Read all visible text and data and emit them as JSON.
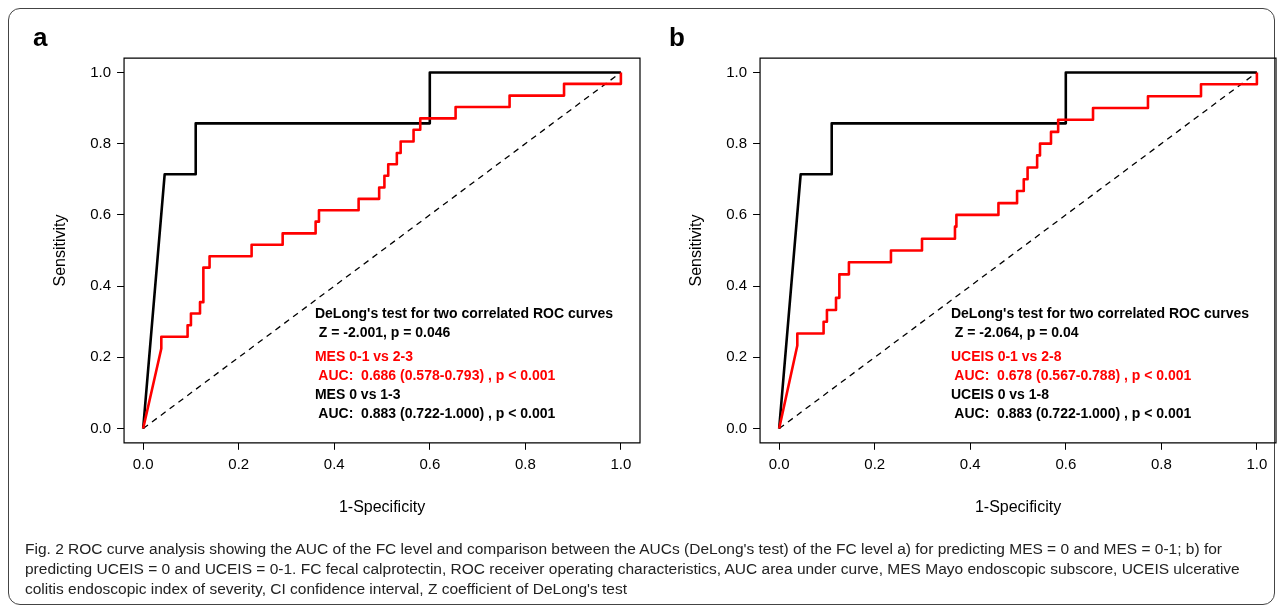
{
  "chart_data": [
    {
      "type": "line",
      "title": "a",
      "xlabel": "1-Specificity",
      "ylabel": "Sensitivity",
      "xlim": [
        -0.04,
        1.04
      ],
      "ylim": [
        -0.04,
        1.04
      ],
      "xticks": [
        {
          "value": 0,
          "label": "0.0"
        },
        {
          "value": 0.2,
          "label": "0.2"
        },
        {
          "value": 0.4,
          "label": "0.4"
        },
        {
          "value": 0.6,
          "label": "0.6"
        },
        {
          "value": 0.8,
          "label": "0.8"
        },
        {
          "value": 1,
          "label": "1.0"
        }
      ],
      "yticks": [
        {
          "value": 0,
          "label": "0.0"
        },
        {
          "value": 0.2,
          "label": "0.2"
        },
        {
          "value": 0.4,
          "label": "0.4"
        },
        {
          "value": 0.6,
          "label": "0.6"
        },
        {
          "value": 0.8,
          "label": "0.8"
        },
        {
          "value": 1,
          "label": "1.0"
        }
      ],
      "grid": false,
      "legend": false,
      "marker": "none",
      "series": [
        {
          "name": "MES 0-1 vs 2-3",
          "color": "#ff0000",
          "type": "line",
          "line_style": "solid",
          "x": [
            0,
            0.038,
            0.038,
            0.093,
            0.093,
            0.1,
            0.1,
            0.119,
            0.119,
            0.126,
            0.126,
            0.139,
            0.139,
            0.227,
            0.227,
            0.292,
            0.292,
            0.361,
            0.361,
            0.368,
            0.368,
            0.451,
            0.451,
            0.494,
            0.494,
            0.505,
            0.505,
            0.513,
            0.513,
            0.531,
            0.531,
            0.539,
            0.539,
            0.566,
            0.566,
            0.58,
            0.58,
            0.654,
            0.654,
            0.767,
            0.767,
            0.881,
            0.881,
            1,
            1
          ],
          "values": [
            0,
            0.225,
            0.258,
            0.258,
            0.29,
            0.29,
            0.323,
            0.323,
            0.355,
            0.355,
            0.452,
            0.452,
            0.484,
            0.484,
            0.516,
            0.516,
            0.548,
            0.548,
            0.581,
            0.581,
            0.613,
            0.613,
            0.645,
            0.645,
            0.677,
            0.677,
            0.71,
            0.71,
            0.742,
            0.742,
            0.774,
            0.774,
            0.806,
            0.806,
            0.839,
            0.839,
            0.871,
            0.871,
            0.903,
            0.903,
            0.935,
            0.935,
            0.968,
            0.968,
            1
          ]
        },
        {
          "name": "MES 0 vs 1-3",
          "color": "#000000",
          "type": "line",
          "line_style": "solid",
          "x": [
            0,
            0.045,
            0.11,
            0.11,
            0.6,
            0.6,
            1
          ],
          "values": [
            0,
            0.714,
            0.714,
            0.857,
            0.857,
            1,
            1
          ]
        },
        {
          "color": "#000000",
          "type": "line",
          "line_style": "dashed",
          "x": [
            0,
            1
          ],
          "values": [
            0,
            1
          ]
        }
      ],
      "annotations": [
        "DeLong's test for two correlated ROC curves",
        " Z = -2.001, p = 0.046",
        " AUC:  0.686 (0.578-0.793) , p < 0.001",
        " AUC:  0.883 (0.722-1.000) , p < 0.001"
      ]
    },
    {
      "type": "line",
      "title": "b",
      "xlabel": "1-Specificity",
      "ylabel": "Sensitivity",
      "xlim": [
        -0.04,
        1.04
      ],
      "ylim": [
        -0.04,
        1.04
      ],
      "xticks": [
        {
          "value": 0,
          "label": "0.0"
        },
        {
          "value": 0.2,
          "label": "0.2"
        },
        {
          "value": 0.4,
          "label": "0.4"
        },
        {
          "value": 0.6,
          "label": "0.6"
        },
        {
          "value": 0.8,
          "label": "0.8"
        },
        {
          "value": 1,
          "label": "1.0"
        }
      ],
      "yticks": [
        {
          "value": 0,
          "label": "0.0"
        },
        {
          "value": 0.2,
          "label": "0.2"
        },
        {
          "value": 0.4,
          "label": "0.4"
        },
        {
          "value": 0.6,
          "label": "0.6"
        },
        {
          "value": 0.8,
          "label": "0.8"
        },
        {
          "value": 1,
          "label": "1.0"
        }
      ],
      "grid": false,
      "legend": false,
      "marker": "none",
      "series": [
        {
          "name": "UCEIS 0-1 vs 2-8",
          "color": "#ff0000",
          "type": "line",
          "line_style": "solid",
          "x": [
            0,
            0.038,
            0.038,
            0.093,
            0.093,
            0.1,
            0.1,
            0.119,
            0.119,
            0.126,
            0.126,
            0.146,
            0.146,
            0.234,
            0.234,
            0.299,
            0.299,
            0.368,
            0.368,
            0.371,
            0.371,
            0.459,
            0.459,
            0.498,
            0.498,
            0.512,
            0.512,
            0.52,
            0.52,
            0.54,
            0.54,
            0.546,
            0.546,
            0.569,
            0.569,
            0.584,
            0.584,
            0.657,
            0.657,
            0.772,
            0.772,
            0.883,
            0.883,
            1,
            1
          ],
          "values": [
            0,
            0.233,
            0.267,
            0.267,
            0.3,
            0.3,
            0.333,
            0.333,
            0.367,
            0.367,
            0.433,
            0.433,
            0.467,
            0.467,
            0.5,
            0.5,
            0.533,
            0.533,
            0.567,
            0.567,
            0.6,
            0.6,
            0.633,
            0.633,
            0.667,
            0.667,
            0.7,
            0.7,
            0.733,
            0.733,
            0.767,
            0.767,
            0.8,
            0.8,
            0.833,
            0.833,
            0.867,
            0.867,
            0.9,
            0.9,
            0.933,
            0.933,
            0.967,
            0.967,
            1
          ]
        },
        {
          "name": "UCEIS 0 vs 1-8",
          "color": "#000000",
          "type": "line",
          "line_style": "solid",
          "x": [
            0,
            0.045,
            0.11,
            0.11,
            0.6,
            0.6,
            1
          ],
          "values": [
            0,
            0.714,
            0.714,
            0.857,
            0.857,
            1,
            1
          ]
        },
        {
          "color": "#000000",
          "type": "line",
          "line_style": "dashed",
          "x": [
            0,
            1
          ],
          "values": [
            0,
            1
          ]
        }
      ],
      "annotations": [
        "DeLong's test for two correlated ROC curves",
        " Z = -2.064, p = 0.04",
        " AUC:  0.678 (0.567-0.788) , p < 0.001",
        " AUC:  0.883 (0.722-1.000) , p < 0.001"
      ]
    },
    {
      "type": "other",
      "annotations": [
        "Fig. 2 ROC curve analysis showing the AUC of the FC level and comparison between the AUCs (DeLong's test) of the FC level a) for predicting MES = 0 and MES = 0-1; b) for predicting UCEIS = 0 and UCEIS = 0-1. FC fecal calprotectin, ROC receiver operating characteristics, AUC area under curve, MES Mayo endoscopic subscore, UCEIS ulcerative colitis endoscopic index of severity, CI confidence interval, Z coefficient of DeLong's test"
      ]
    }
  ]
}
